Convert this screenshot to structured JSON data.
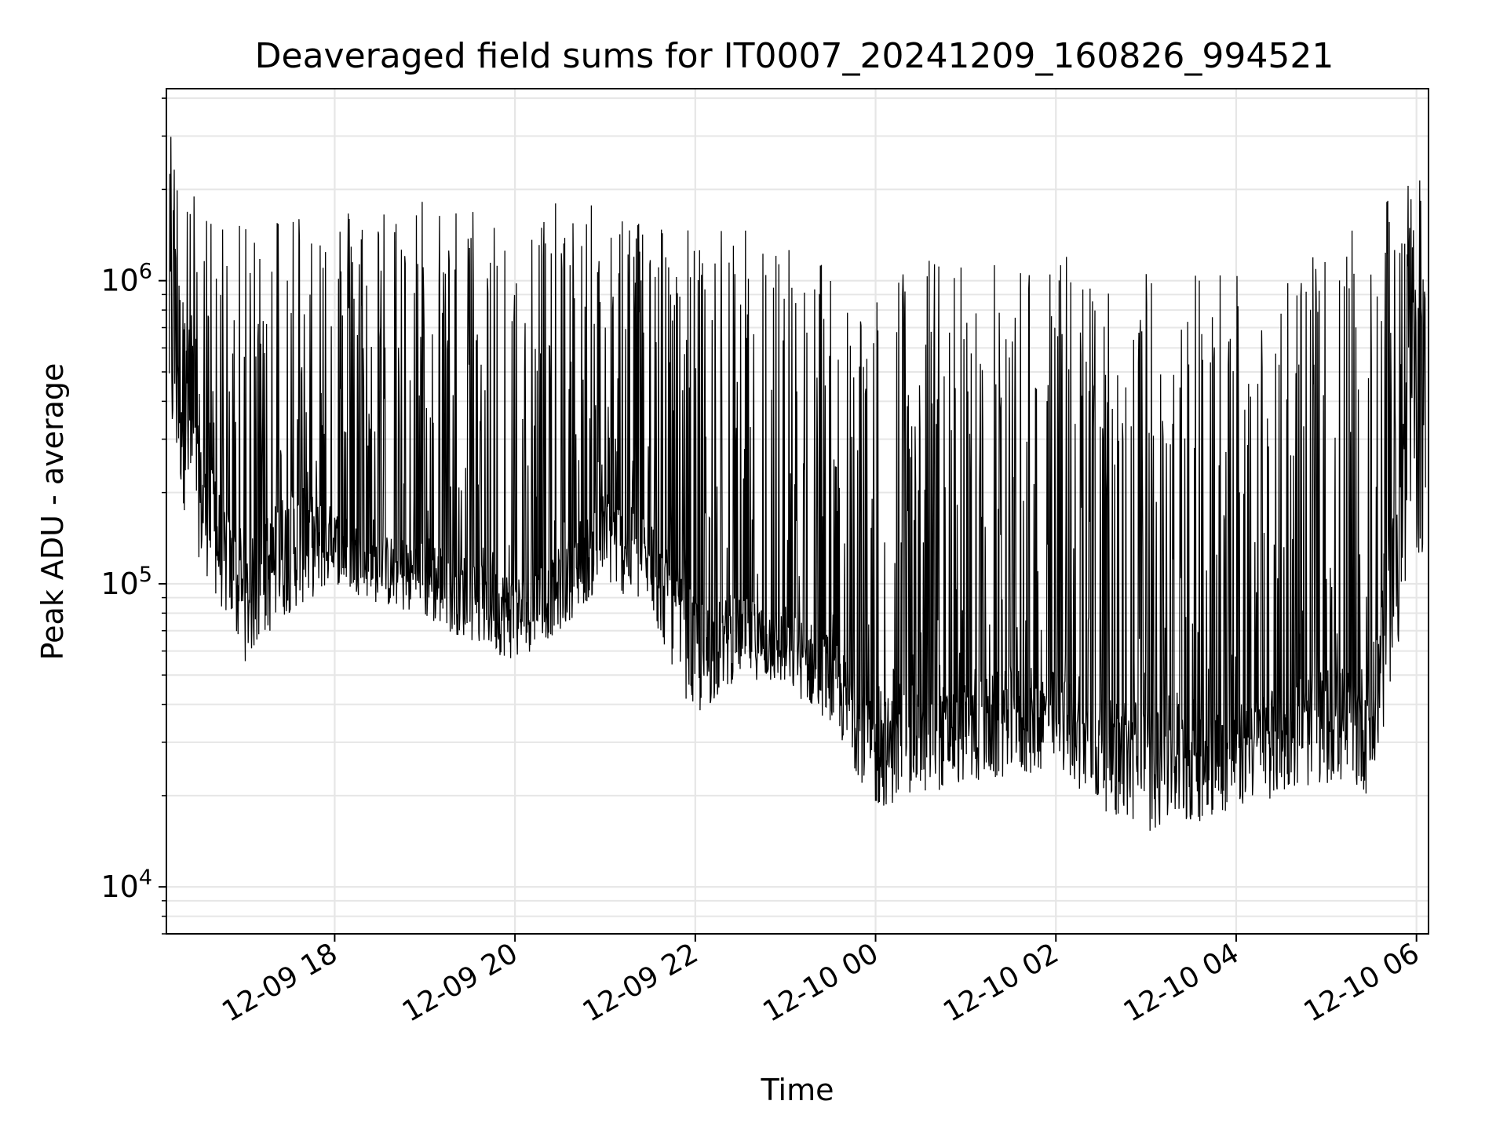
{
  "chart_data": {
    "type": "line",
    "title": "Deaveraged field sums for IT0007_20241209_160826_994521",
    "xlabel": "Time",
    "ylabel": "Peak ADU - average",
    "x_ticks": [
      "12-09 18",
      "12-09 20",
      "12-09 22",
      "12-10 00",
      "12-10 02",
      "12-10 04",
      "12-10 06"
    ],
    "y_ticks": [
      {
        "value": 10000,
        "base": "10",
        "exp": "4"
      },
      {
        "value": 100000,
        "base": "10",
        "exp": "5"
      },
      {
        "value": 1000000,
        "base": "10",
        "exp": "6"
      }
    ],
    "xlim": [
      "2024-12-09 16:08",
      "2024-12-10 06:08"
    ],
    "ylim": [
      7000,
      4300000
    ],
    "yscale": "log",
    "grid": true,
    "line_color": "#000000",
    "series": [
      {
        "x": [
          "2024-12-09 16:10",
          "2024-12-09 16:30",
          "2024-12-09 17:00",
          "2024-12-09 17:30",
          "2024-12-09 18:00",
          "2024-12-09 18:30",
          "2024-12-09 19:00",
          "2024-12-09 19:30",
          "2024-12-09 20:00",
          "2024-12-09 20:30",
          "2024-12-09 21:00",
          "2024-12-09 21:30",
          "2024-12-09 22:00",
          "2024-12-09 22:30",
          "2024-12-09 23:00",
          "2024-12-09 23:30",
          "2024-12-10 00:00",
          "2024-12-10 00:30",
          "2024-12-10 01:00",
          "2024-12-10 01:30",
          "2024-12-10 02:00",
          "2024-12-10 02:30",
          "2024-12-10 03:00",
          "2024-12-10 03:30",
          "2024-12-10 04:00",
          "2024-12-10 04:30",
          "2024-12-10 05:00",
          "2024-12-10 05:30",
          "2024-12-10 06:00"
        ],
        "low": [
          250000,
          120000,
          55000,
          80000,
          100000,
          85000,
          75000,
          65000,
          55000,
          70000,
          100000,
          80000,
          35000,
          50000,
          45000,
          35000,
          18000,
          20000,
          22000,
          22000,
          25000,
          18000,
          15000,
          16000,
          18000,
          20000,
          22000,
          20000,
          120000
        ],
        "base": [
          1500000,
          250000,
          110000,
          180000,
          160000,
          130000,
          130000,
          110000,
          95000,
          110000,
          180000,
          140000,
          75000,
          80000,
          75000,
          60000,
          35000,
          40000,
          40000,
          45000,
          45000,
          35000,
          35000,
          35000,
          35000,
          40000,
          45000,
          45000,
          700000
        ],
        "high": [
          3200000,
          1800000,
          1500000,
          2000000,
          1800000,
          1900000,
          2000000,
          1800000,
          1900000,
          1800000,
          1800000,
          1800000,
          1500000,
          1500000,
          1450000,
          1200000,
          1000000,
          1250000,
          1200000,
          1150000,
          1300000,
          1100000,
          1100000,
          1200000,
          1200000,
          1200000,
          1200000,
          1700000,
          2200000
        ]
      }
    ]
  }
}
